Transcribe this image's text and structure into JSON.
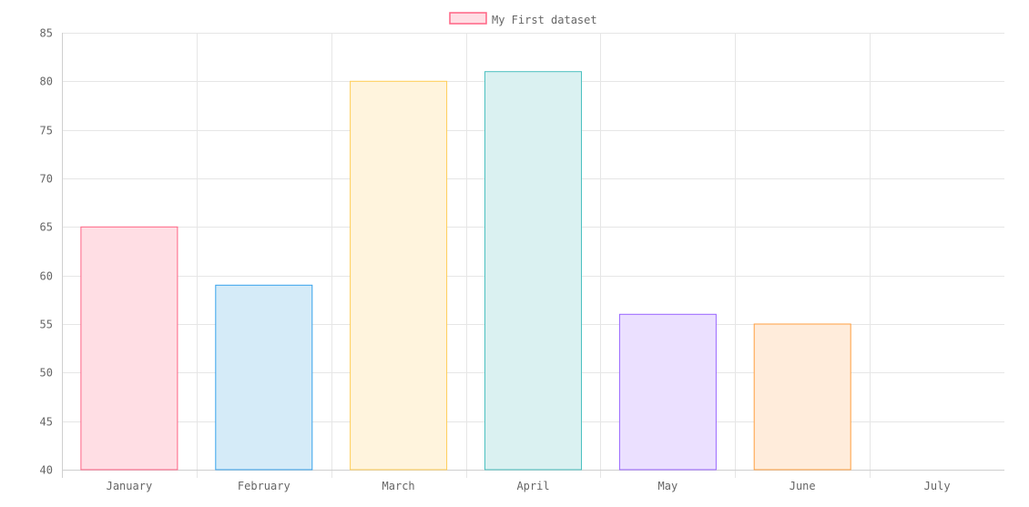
{
  "chart_data": {
    "type": "bar",
    "categories": [
      "January",
      "February",
      "March",
      "April",
      "May",
      "June",
      "July"
    ],
    "series": [
      {
        "name": "My First dataset",
        "values": [
          65,
          59,
          80,
          81,
          56,
          55,
          40
        ],
        "fill_colors": [
          "#ffdee4",
          "#d5ebf8",
          "#fff4dd",
          "#daf1f1",
          "#ebe0ff",
          "#ffecdb",
          "#f4f5f5"
        ],
        "border_colors": [
          "#ff6384",
          "#36a2eb",
          "#ffcd56",
          "#4bc0c0",
          "#9966ff",
          "#ff9f40",
          "#c9cbcf"
        ]
      }
    ],
    "ylim": [
      40,
      85
    ],
    "y_ticks": [
      "85",
      "80",
      "75",
      "70",
      "65",
      "60",
      "55",
      "50",
      "45",
      "40"
    ],
    "grid": true,
    "legend_position": "top",
    "legend": {
      "label": "My First dataset",
      "fill_color": "#ffdee4",
      "border_color": "#ff6384"
    }
  }
}
